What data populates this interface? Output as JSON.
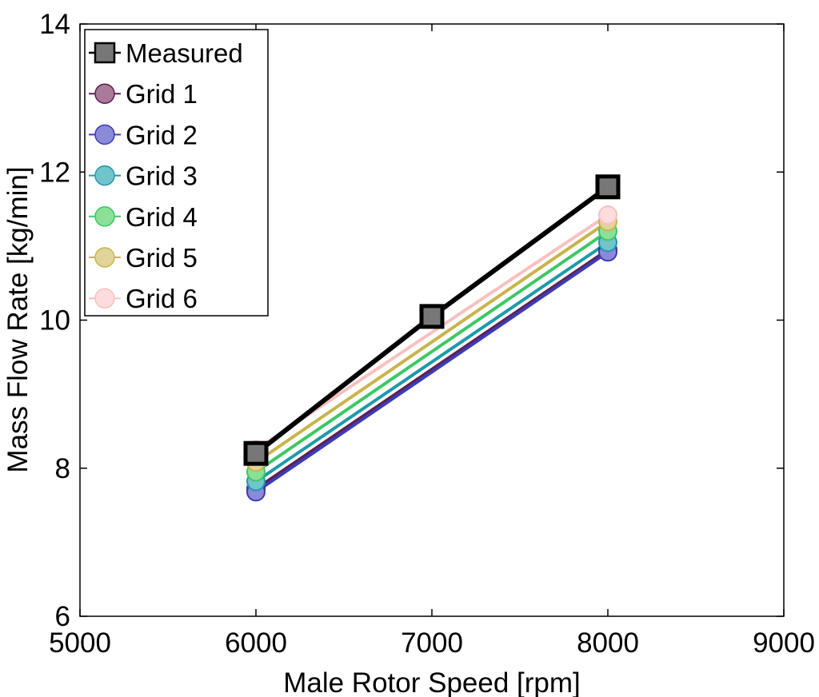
{
  "chart_data": {
    "type": "line",
    "title": "",
    "xlabel": "Male Rotor Speed [rpm]",
    "ylabel": "Mass Flow Rate [kg/min]",
    "xlim": [
      5000,
      9000
    ],
    "ylim": [
      6,
      14
    ],
    "xticks": [
      "5000",
      "6000",
      "7000",
      "8000",
      "9000"
    ],
    "yticks": [
      "6",
      "8",
      "10",
      "12",
      "14"
    ],
    "grid": false,
    "legend_position": "top-left",
    "series": [
      {
        "name": "Measured",
        "marker": "square",
        "color": "#000000",
        "fill": "#777777",
        "x": [
          6000,
          7000,
          8000
        ],
        "y": [
          8.2,
          10.05,
          11.8
        ]
      },
      {
        "name": "Grid 1",
        "marker": "circle",
        "color": "#5e1e50",
        "fill": "#a97a9a",
        "x": [
          6000,
          8000
        ],
        "y": [
          7.72,
          10.95
        ]
      },
      {
        "name": "Grid 2",
        "marker": "circle",
        "color": "#3c3cb4",
        "fill": "#8a8ad8",
        "x": [
          6000,
          8000
        ],
        "y": [
          7.68,
          10.92
        ]
      },
      {
        "name": "Grid 3",
        "marker": "circle",
        "color": "#1c9aaa",
        "fill": "#72c4cc",
        "x": [
          6000,
          8000
        ],
        "y": [
          7.82,
          11.05
        ]
      },
      {
        "name": "Grid 4",
        "marker": "circle",
        "color": "#3cc864",
        "fill": "#8ce096",
        "x": [
          6000,
          8000
        ],
        "y": [
          7.95,
          11.2
        ]
      },
      {
        "name": "Grid 5",
        "marker": "circle",
        "color": "#c8b44c",
        "fill": "#e0d49a",
        "x": [
          6000,
          8000
        ],
        "y": [
          8.08,
          11.33
        ]
      },
      {
        "name": "Grid 6",
        "marker": "circle",
        "color": "#f8c0c0",
        "fill": "#fcdcdc",
        "x": [
          6000,
          8000
        ],
        "y": [
          8.25,
          11.42
        ]
      }
    ]
  }
}
